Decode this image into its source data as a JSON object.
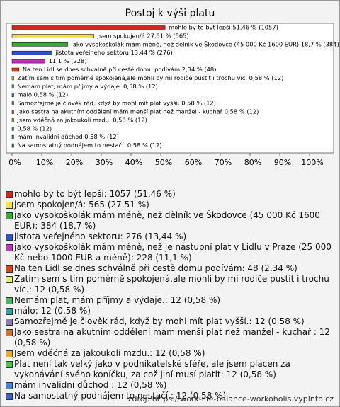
{
  "chart_data": {
    "type": "bar",
    "orientation": "horizontal",
    "title": "Postoj k výši platu",
    "categories": [
      "mohlo by to být lepší",
      "jsem spokojen/á",
      "jako vysokoškolák mám méně, než dělník ve Škodovce (45 000 Kč 1600 EUR)",
      "jistota veřejného sektoru",
      "jako vysokoškolák mám méně, než je nástupní plat v Lidlu v Praze (25 000 Kč nebo 1000 EUR a méně)",
      "Na ten Lidl se dnes schválně při cestě domu podívám",
      "Zatím sem s tím poměrně spokojená,ale mohli by mi rodiče pustit i trochu víc.",
      "Nemám plat, mám příjmy a výdaje.",
      "málo",
      "Samozřejmě je člověk rád, když by mohl mít plat vyšší.",
      "Jako sestra na akutním oddělení mám menší plat než manžel - kuchař ",
      "Jsem vděčná za jakoukoli mzdu.",
      "Plat není tak velký jako v podnikatelské sféře, ale jsem placen za vykonávání svého koníčku, za což jiní musí platit",
      "mám invalidní důchod ",
      "Na samostatný podnájem to nestačí."
    ],
    "values": [
      51.46,
      27.51,
      18.7,
      13.44,
      11.1,
      2.34,
      0.58,
      0.58,
      0.58,
      0.58,
      0.58,
      0.58,
      0.58,
      0.58,
      0.58
    ],
    "value_labels": [
      "mohlo by to být lepší 51,46 % (1057)",
      "jsem spokojen/á 27,51 % (565)",
      "jako vysokoškolák mám méně, než dělník ve Škodovce (45 000 Kč 1600 EUR) 18,7 % (384)",
      "jistota veřejného sektoru 13,44 % (276)",
      "11,1 % (228)",
      "Na ten Lidl se dnes schválně při cestě domu podívám 2,34 % (48)",
      "Zatím sem s tím poměrně spokojená,ale mohli by mi rodiče pustit i trochu víc. 0,58 % (12)",
      "Nemám plat, mám příjmy a výdaje. 0,58 % (12)",
      "málo 0,58 % (12)",
      "Samozřejmě je člověk rád, když by mohl mít plat vyšší. 0,58 % (12)",
      "Jako sestra na akutním oddělení mám menší plat než manžel - kuchař  0,58 % (12)",
      "Jsem vděčná za jakoukoli mzdu. 0,58 % (12)",
      "0,58 % (12)",
      "mám invalidní důchod  0,58 % (12)",
      "Na samostatný podnájem to nestačí. 0,58 % (12)"
    ],
    "legend_labels": [
      "mohlo by to být lepší: 1057 (51,46 %)",
      "jsem spokojen/á: 565 (27,51 %)",
      "jako vysokoškolák mám méně, než dělník ve Škodovce (45 000 Kč 1600 EUR): 384 (18,7 %)",
      "jistota veřejného sektoru: 276 (13,44 %)",
      "jako vysokoškolák mám méně, než je nástupní plat v Lidlu v Praze (25 000 Kč nebo 1000 EUR a méně): 228 (11,1 %)",
      "Na ten Lidl se dnes schválně při cestě domu podívám: 48 (2,34 %)",
      "Zatím sem s tím poměrně spokojená,ale mohli by mi rodiče pustit i trochu víc.: 12 (0,58 %)",
      "Nemám plat, mám příjmy a výdaje.: 12 (0,58 %)",
      "málo: 12 (0,58 %)",
      "Samozřejmě je člověk rád, když by mohl mít plat vyšší.: 12 (0,58 %)",
      "Jako sestra na akutním oddělení mám menší plat než manžel - kuchař : 12 (0,58 %)",
      "Jsem vděčná za jakoukoli mzdu.: 12 (0,58 %)",
      "Plat není tak velký jako v podnikatelské sféře, ale jsem placen za vykonávání svého koníčku, za což jiní musí platit: 12 (0,58 %)",
      "mám invalidní důchod : 12 (0,58 %)",
      "Na samostatný podnájem to nestačí.: 12 (0,58 %)"
    ],
    "colors": [
      "#cc2a1a",
      "#f2e23a",
      "#2fae2f",
      "#3050d0",
      "#c030c0",
      "#e0401a",
      "#e8f070",
      "#40b860",
      "#30a0a0",
      "#9078b0",
      "#d07030",
      "#e8b020",
      "#50c050",
      "#4080e0",
      "#4060c0"
    ],
    "xlim": [
      0,
      100
    ],
    "xticks": [
      {
        "value": 0,
        "label": "0%"
      },
      {
        "value": 10,
        "label": "10%"
      },
      {
        "value": 20,
        "label": "20%"
      },
      {
        "value": 30,
        "label": "30%"
      },
      {
        "value": 40,
        "label": "40%"
      },
      {
        "value": 50,
        "label": "50%"
      },
      {
        "value": 60,
        "label": "60%"
      },
      {
        "value": 70,
        "label": "70%"
      },
      {
        "value": 80,
        "label": "80%"
      },
      {
        "value": 90,
        "label": "90%"
      },
      {
        "value": 100,
        "label": "100%"
      }
    ],
    "source": "zdroj: https://work-life-balance-workoholis.vyplnto.cz"
  }
}
